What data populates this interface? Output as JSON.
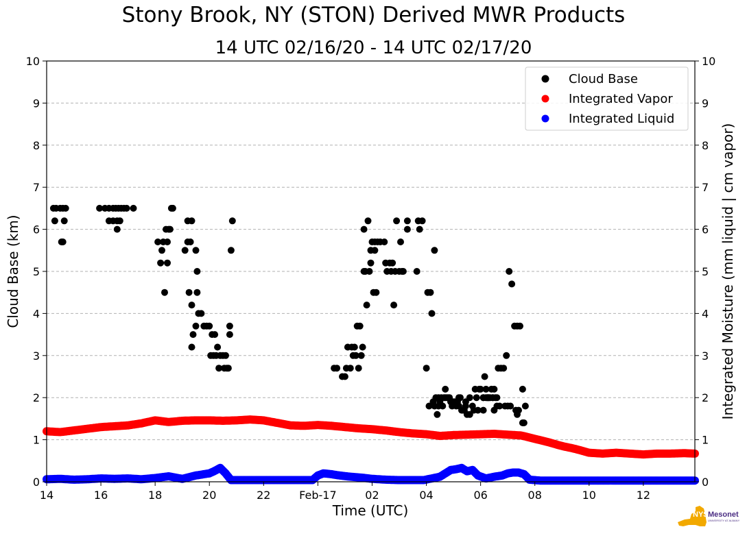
{
  "page": {
    "title": "Stony Brook, NY (STON) Derived MWR Products",
    "subtitle": "14 UTC 02/16/20 - 14 UTC 02/17/20"
  },
  "logo": {
    "name": "NYS Mesonet",
    "tagline": "UNIVERSITY AT ALBANY",
    "colors": {
      "state": "#f2a900",
      "text": "#4b2e83"
    }
  },
  "chart_data": {
    "type": "scatter",
    "title": "Stony Brook, NY (STON) Derived MWR Products",
    "subtitle": "14 UTC 02/16/20 - 14 UTC 02/17/20",
    "xlabel": "Time (UTC)",
    "ylabel": "Cloud Base (km)",
    "y2label": "Integrated Moisture (mm liquid | cm vapor)",
    "xlim": [
      14,
      37.9
    ],
    "ylim": [
      0,
      10
    ],
    "y2lim": [
      0,
      10
    ],
    "x_unit": "hours since 00 UTC 02/16/20",
    "xticks": [
      {
        "x": 14,
        "label": "14"
      },
      {
        "x": 16,
        "label": "16"
      },
      {
        "x": 18,
        "label": "18"
      },
      {
        "x": 20,
        "label": "20"
      },
      {
        "x": 22,
        "label": "22"
      },
      {
        "x": 24,
        "label": "Feb-17"
      },
      {
        "x": 26,
        "label": "02"
      },
      {
        "x": 28,
        "label": "04"
      },
      {
        "x": 30,
        "label": "06"
      },
      {
        "x": 32,
        "label": "08"
      },
      {
        "x": 34,
        "label": "10"
      },
      {
        "x": 36,
        "label": "12"
      }
    ],
    "yticks": [
      0,
      1,
      2,
      3,
      4,
      5,
      6,
      7,
      8,
      9,
      10
    ],
    "grid": "horizontal dashed",
    "legend_position": "top-right",
    "series": [
      {
        "name": "Cloud Base",
        "color": "#000000",
        "x": [
          14.25,
          14.35,
          14.5,
          14.6,
          14.7,
          14.3,
          14.65,
          14.55,
          14.6,
          15.95,
          16.15,
          16.3,
          16.45,
          16.55,
          16.65,
          16.75,
          16.85,
          16.95,
          17.2,
          16.3,
          16.45,
          16.6,
          16.7,
          16.6,
          18.1,
          18.3,
          18.2,
          18.25,
          18.35,
          18.45,
          18.55,
          18.6,
          18.65,
          18.45,
          18.5,
          18.4,
          19.1,
          19.2,
          19.3,
          19.2,
          19.35,
          19.5,
          19.55,
          19.55,
          19.25,
          19.35,
          19.4,
          19.5,
          19.35,
          19.6,
          19.7,
          19.8,
          19.9,
          20.0,
          20.1,
          20.2,
          20.05,
          20.15,
          20.25,
          20.35,
          20.5,
          20.6,
          20.65,
          20.75,
          20.3,
          20.4,
          20.55,
          20.7,
          20.75,
          20.8,
          20.85,
          24.6,
          24.7,
          24.9,
          25.0,
          25.05,
          25.2,
          25.3,
          25.35,
          25.45,
          25.55,
          25.1,
          25.25,
          25.4,
          25.5,
          25.6,
          25.65,
          25.7,
          25.75,
          25.8,
          25.9,
          25.95,
          26.0,
          26.1,
          26.2,
          25.7,
          25.85,
          25.95,
          26.05,
          26.15,
          26.3,
          26.45,
          26.5,
          26.55,
          26.65,
          26.7,
          26.75,
          26.85,
          26.9,
          27.0,
          27.1,
          26.8,
          27.05,
          27.15,
          27.3,
          26.1,
          27.3,
          27.7,
          27.75,
          27.65,
          27.85,
          29.8,
          29.95,
          30.0,
          30.1,
          30.2,
          30.25,
          30.3,
          30.4,
          30.45,
          30.55,
          30.6,
          30.15,
          30.25,
          30.35,
          30.5,
          30.1,
          30.2,
          30.3,
          30.45,
          30.65,
          30.75,
          30.85,
          30.95,
          31.05,
          31.15,
          31.25,
          31.35,
          31.45,
          31.55,
          29.75,
          29.9,
          30.1,
          30.5,
          30.6,
          30.7,
          30.9,
          31.0,
          31.1,
          31.3,
          31.35,
          31.4,
          31.55,
          31.6,
          31.65,
          28.3,
          28.35,
          28.45,
          28.55,
          28.65,
          28.75,
          28.85,
          28.9,
          29.0,
          29.1,
          29.2,
          29.3,
          29.4,
          29.5,
          29.6,
          28.05,
          28.15,
          28.2,
          28.3,
          28.4,
          28.5,
          28.6,
          28.7,
          28.8,
          28.95,
          29.05,
          29.15,
          29.25,
          29.35,
          29.45,
          28.0,
          28.1,
          28.25,
          28.45,
          28.7,
          28.9,
          29.2,
          29.45,
          29.6,
          29.7,
          29.85
        ],
        "y": [
          6.5,
          6.5,
          6.5,
          6.5,
          6.5,
          6.2,
          6.2,
          5.7,
          5.7,
          6.5,
          6.5,
          6.5,
          6.5,
          6.5,
          6.5,
          6.5,
          6.5,
          6.5,
          6.5,
          6.2,
          6.2,
          6.2,
          6.2,
          6.0,
          5.7,
          5.7,
          5.2,
          5.5,
          4.5,
          5.2,
          6.0,
          6.5,
          6.5,
          5.7,
          6.0,
          6.0,
          5.5,
          5.7,
          5.7,
          6.2,
          6.2,
          5.5,
          5.0,
          4.5,
          4.5,
          4.2,
          3.5,
          3.7,
          3.2,
          4.0,
          4.0,
          3.7,
          3.7,
          3.7,
          3.5,
          3.5,
          3.0,
          3.0,
          3.0,
          2.7,
          3.0,
          3.0,
          2.7,
          3.5,
          3.2,
          3.0,
          2.7,
          2.7,
          3.7,
          5.5,
          6.2,
          2.7,
          2.7,
          2.5,
          2.5,
          2.7,
          2.7,
          3.0,
          3.2,
          3.7,
          3.7,
          3.2,
          3.2,
          3.0,
          2.7,
          3.0,
          3.2,
          5.0,
          5.0,
          4.2,
          5.0,
          5.5,
          5.7,
          5.5,
          5.7,
          6.0,
          6.2,
          5.2,
          4.5,
          4.5,
          5.7,
          5.7,
          5.2,
          5.0,
          5.2,
          5.0,
          5.2,
          5.0,
          6.2,
          5.0,
          5.0,
          4.2,
          5.7,
          5.0,
          6.2,
          5.7,
          6.0,
          6.2,
          6.0,
          5.0,
          6.2,
          2.2,
          2.2,
          2.2,
          2.0,
          2.2,
          2.0,
          2.0,
          2.2,
          2.0,
          2.0,
          2.0,
          2.5,
          2.0,
          2.0,
          2.2,
          2.0,
          2.0,
          2.0,
          2.0,
          2.7,
          2.7,
          2.7,
          3.0,
          5.0,
          4.7,
          3.7,
          3.7,
          3.7,
          2.2,
          1.7,
          1.7,
          1.7,
          1.7,
          1.8,
          1.8,
          1.8,
          1.8,
          1.8,
          1.7,
          1.6,
          1.7,
          1.4,
          1.4,
          1.8,
          1.8,
          2.0,
          2.0,
          2.0,
          2.0,
          2.0,
          2.0,
          1.9,
          1.9,
          1.8,
          1.8,
          1.7,
          1.7,
          1.6,
          1.6,
          4.5,
          4.5,
          4.0,
          5.5,
          1.6,
          1.9,
          1.8,
          2.2,
          2.0,
          1.8,
          1.9,
          1.9,
          2.0,
          1.7,
          1.8,
          2.7,
          1.8,
          1.9,
          1.8,
          2.0,
          1.9,
          2.0,
          1.9,
          2.0,
          1.8,
          2.0
        ]
      },
      {
        "name": "Integrated Vapor",
        "color": "#ff0000",
        "x": [
          14.0,
          14.5,
          15.0,
          15.5,
          16.0,
          16.5,
          17.0,
          17.5,
          18.0,
          18.5,
          19.0,
          19.5,
          20.0,
          20.5,
          21.0,
          21.5,
          22.0,
          22.5,
          23.0,
          23.5,
          24.0,
          24.5,
          25.0,
          25.5,
          26.0,
          26.5,
          27.0,
          27.5,
          28.0,
          28.5,
          29.0,
          29.5,
          30.0,
          30.5,
          31.0,
          31.5,
          32.0,
          32.5,
          33.0,
          33.5,
          34.0,
          34.5,
          35.0,
          35.5,
          36.0,
          36.5,
          37.0,
          37.5,
          37.9
        ],
        "y": [
          1.2,
          1.18,
          1.22,
          1.26,
          1.3,
          1.32,
          1.34,
          1.39,
          1.46,
          1.42,
          1.45,
          1.46,
          1.46,
          1.45,
          1.46,
          1.48,
          1.46,
          1.4,
          1.34,
          1.33,
          1.35,
          1.33,
          1.3,
          1.27,
          1.25,
          1.22,
          1.18,
          1.15,
          1.13,
          1.09,
          1.11,
          1.12,
          1.13,
          1.14,
          1.12,
          1.1,
          1.02,
          0.94,
          0.85,
          0.78,
          0.69,
          0.67,
          0.69,
          0.67,
          0.65,
          0.67,
          0.67,
          0.68,
          0.67
        ]
      },
      {
        "name": "Integrated Liquid",
        "color": "#0000ff",
        "x": [
          14.0,
          14.5,
          15.0,
          15.5,
          16.0,
          16.5,
          17.0,
          17.5,
          18.0,
          18.5,
          19.0,
          19.5,
          19.8,
          20.0,
          20.2,
          20.4,
          20.6,
          20.8,
          21.0,
          22.0,
          23.0,
          23.8,
          24.0,
          24.2,
          24.5,
          24.8,
          25.2,
          25.6,
          26.0,
          26.5,
          27.0,
          27.5,
          27.9,
          28.2,
          28.5,
          28.7,
          28.9,
          29.1,
          29.3,
          29.5,
          29.7,
          29.9,
          30.2,
          30.5,
          30.8,
          31.0,
          31.2,
          31.4,
          31.6,
          31.8,
          32.2,
          33.0,
          34.0,
          35.0,
          36.0,
          37.0,
          37.9
        ],
        "y": [
          0.06,
          0.07,
          0.05,
          0.06,
          0.08,
          0.07,
          0.08,
          0.06,
          0.09,
          0.13,
          0.07,
          0.15,
          0.18,
          0.2,
          0.26,
          0.33,
          0.2,
          0.04,
          0.04,
          0.04,
          0.04,
          0.04,
          0.15,
          0.2,
          0.18,
          0.15,
          0.12,
          0.1,
          0.07,
          0.05,
          0.04,
          0.04,
          0.04,
          0.08,
          0.12,
          0.2,
          0.28,
          0.3,
          0.33,
          0.25,
          0.28,
          0.15,
          0.08,
          0.12,
          0.15,
          0.2,
          0.22,
          0.22,
          0.18,
          0.05,
          0.03,
          0.03,
          0.03,
          0.03,
          0.03,
          0.03,
          0.03
        ]
      }
    ]
  }
}
